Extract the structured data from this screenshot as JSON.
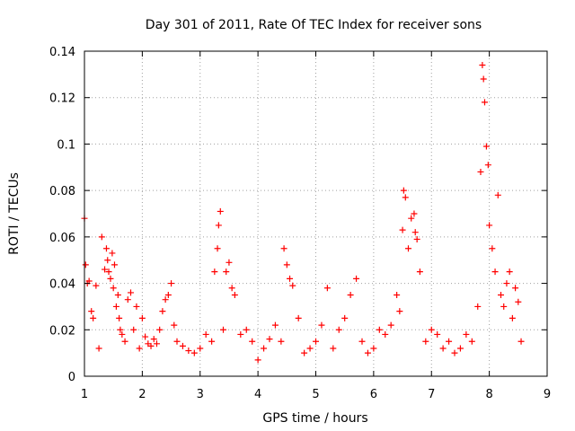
{
  "chart_data": {
    "type": "scatter",
    "title": "Day 301 of 2011, Rate Of TEC Index for receiver sons",
    "xlabel": "GPS time / hours",
    "ylabel": "ROTI / TECUs",
    "xlim": [
      1,
      9
    ],
    "ylim": [
      0,
      0.14
    ],
    "xticks": [
      "1",
      "2",
      "3",
      "4",
      "5",
      "6",
      "7",
      "8",
      "9"
    ],
    "yticks": [
      "0",
      "0.02",
      "0.04",
      "0.06",
      "0.08",
      "0.1",
      "0.12",
      "0.14"
    ],
    "grid": true,
    "marker": "+",
    "color": "#ff0000",
    "series": [
      {
        "name": "ROTI",
        "x": [
          1.0,
          1.02,
          1.05,
          1.08,
          1.12,
          1.15,
          1.2,
          1.25,
          1.3,
          1.35,
          1.38,
          1.4,
          1.42,
          1.45,
          1.48,
          1.5,
          1.52,
          1.55,
          1.58,
          1.6,
          1.62,
          1.65,
          1.7,
          1.75,
          1.8,
          1.85,
          1.9,
          1.95,
          2.0,
          2.05,
          2.1,
          2.15,
          2.2,
          2.25,
          2.3,
          2.35,
          2.4,
          2.45,
          2.5,
          2.55,
          2.6,
          2.7,
          2.8,
          2.9,
          3.0,
          3.1,
          3.2,
          3.25,
          3.3,
          3.32,
          3.35,
          3.4,
          3.45,
          3.5,
          3.55,
          3.6,
          3.7,
          3.8,
          3.9,
          4.0,
          4.1,
          4.2,
          4.3,
          4.4,
          4.45,
          4.5,
          4.55,
          4.6,
          4.7,
          4.8,
          4.9,
          5.0,
          5.1,
          5.2,
          5.3,
          5.4,
          5.5,
          5.6,
          5.7,
          5.8,
          5.9,
          6.0,
          6.1,
          6.2,
          6.3,
          6.4,
          6.45,
          6.5,
          6.52,
          6.55,
          6.6,
          6.65,
          6.7,
          6.72,
          6.75,
          6.8,
          6.9,
          7.0,
          7.1,
          7.2,
          7.3,
          7.4,
          7.5,
          7.6,
          7.7,
          7.8,
          7.85,
          7.88,
          7.9,
          7.92,
          7.95,
          7.98,
          8.0,
          8.05,
          8.1,
          8.15,
          8.2,
          8.25,
          8.3,
          8.35,
          8.4,
          8.45,
          8.5,
          8.55
        ],
        "y": [
          0.068,
          0.048,
          0.04,
          0.041,
          0.028,
          0.025,
          0.039,
          0.012,
          0.06,
          0.046,
          0.055,
          0.05,
          0.045,
          0.042,
          0.053,
          0.038,
          0.048,
          0.03,
          0.035,
          0.025,
          0.02,
          0.018,
          0.015,
          0.033,
          0.036,
          0.02,
          0.03,
          0.012,
          0.025,
          0.017,
          0.014,
          0.013,
          0.016,
          0.014,
          0.02,
          0.028,
          0.033,
          0.035,
          0.04,
          0.022,
          0.015,
          0.013,
          0.011,
          0.01,
          0.012,
          0.018,
          0.015,
          0.045,
          0.055,
          0.065,
          0.071,
          0.02,
          0.045,
          0.049,
          0.038,
          0.035,
          0.018,
          0.02,
          0.015,
          0.007,
          0.012,
          0.016,
          0.022,
          0.015,
          0.055,
          0.048,
          0.042,
          0.039,
          0.025,
          0.01,
          0.012,
          0.015,
          0.022,
          0.038,
          0.012,
          0.02,
          0.025,
          0.035,
          0.042,
          0.015,
          0.01,
          0.012,
          0.02,
          0.018,
          0.022,
          0.035,
          0.028,
          0.063,
          0.08,
          0.077,
          0.055,
          0.068,
          0.07,
          0.062,
          0.059,
          0.045,
          0.015,
          0.02,
          0.018,
          0.012,
          0.015,
          0.01,
          0.012,
          0.018,
          0.015,
          0.03,
          0.088,
          0.134,
          0.128,
          0.118,
          0.099,
          0.091,
          0.065,
          0.055,
          0.045,
          0.078,
          0.035,
          0.03,
          0.04,
          0.045,
          0.025,
          0.038,
          0.032,
          0.015
        ]
      }
    ]
  }
}
